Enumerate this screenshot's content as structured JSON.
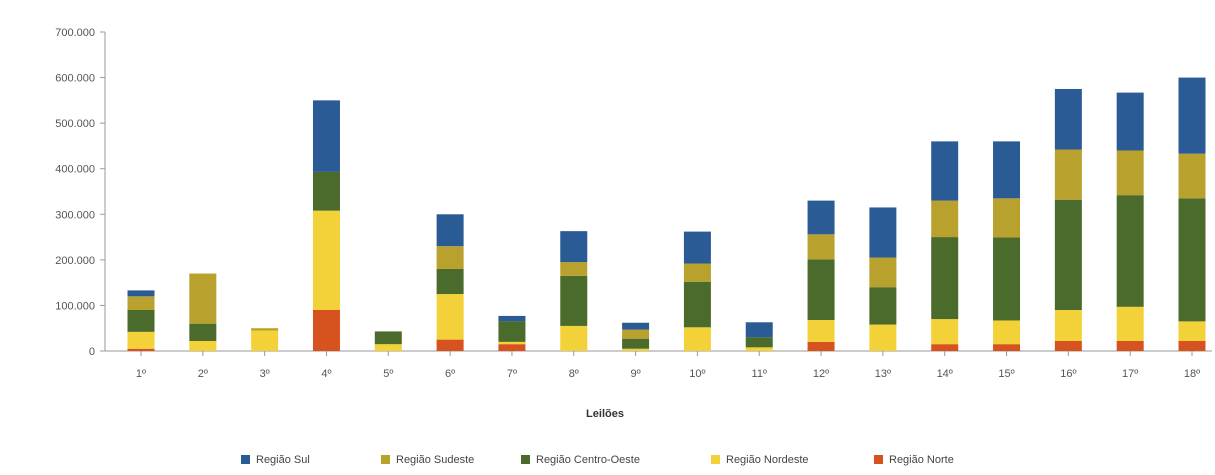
{
  "chart_data": {
    "type": "bar",
    "stacked": true,
    "xlabel": "Leilões",
    "ylabel": "",
    "ylim": [
      0,
      700000
    ],
    "yticks": [
      0,
      100000,
      200000,
      300000,
      400000,
      500000,
      600000,
      700000
    ],
    "ytick_labels": [
      "0",
      "100.000",
      "200.000",
      "300.000",
      "400.000",
      "500.000",
      "600.000",
      "700.000"
    ],
    "categories": [
      "1º",
      "2º",
      "3º",
      "4º",
      "5º",
      "6º",
      "7º",
      "8º",
      "9º",
      "10º",
      "11º",
      "12º",
      "13º",
      "14º",
      "15º",
      "16º",
      "17º",
      "18º"
    ],
    "grid": false,
    "legend_position": "bottom",
    "series": [
      {
        "name": "Região Norte",
        "color": "#d6521e",
        "values": [
          5000,
          0,
          0,
          90000,
          0,
          25000,
          15000,
          0,
          0,
          0,
          0,
          20000,
          0,
          15000,
          15000,
          22000,
          22000,
          22000
        ]
      },
      {
        "name": "Região Nordeste",
        "color": "#f2d139",
        "values": [
          37000,
          22000,
          45000,
          218000,
          15000,
          100000,
          5000,
          55000,
          5000,
          52000,
          8000,
          48000,
          58000,
          55000,
          52000,
          68000,
          75000,
          43000
        ]
      },
      {
        "name": "Região Centro-Oeste",
        "color": "#4b6b2c",
        "values": [
          48000,
          38000,
          0,
          85000,
          28000,
          55000,
          45000,
          110000,
          22000,
          100000,
          22000,
          133000,
          82000,
          180000,
          182000,
          242000,
          245000,
          270000
        ]
      },
      {
        "name": "Região Sudeste",
        "color": "#b8a12c",
        "values": [
          30000,
          110000,
          5000,
          0,
          0,
          50000,
          0,
          30000,
          20000,
          40000,
          0,
          55000,
          65000,
          80000,
          86000,
          110000,
          98000,
          98000
        ]
      },
      {
        "name": "Região Sul",
        "color": "#2a5b94",
        "values": [
          13000,
          0,
          0,
          157000,
          0,
          70000,
          12000,
          68000,
          15000,
          70000,
          33000,
          74000,
          110000,
          130000,
          125000,
          133000,
          127000,
          167000
        ]
      }
    ]
  }
}
